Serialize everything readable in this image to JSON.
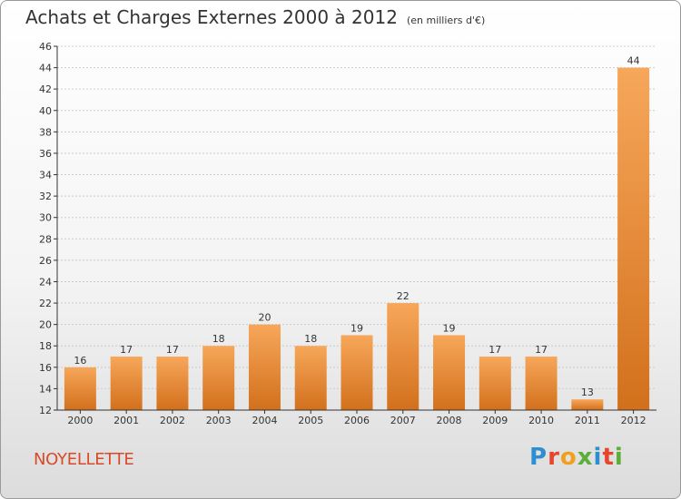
{
  "header": {
    "title": "Achats et Charges Externes 2000 à 2012",
    "subtitle": "(en milliers d'€)"
  },
  "footer": {
    "commune": "NOYELLETTE",
    "logo_text": "Proxiti",
    "logo_colors": [
      "#2d8fd0",
      "#e7462c",
      "#f0a01c",
      "#5cae3a",
      "#2d8fd0",
      "#e7462c",
      "#5cae3a"
    ]
  },
  "colors": {
    "bar_light": "#f7a75a",
    "bar_dark": "#d2701c",
    "axis": "#333333",
    "grid": "#cccccc"
  },
  "chart_data": {
    "type": "bar",
    "categories": [
      "2000",
      "2001",
      "2002",
      "2003",
      "2004",
      "2005",
      "2006",
      "2007",
      "2008",
      "2009",
      "2010",
      "2011",
      "2012"
    ],
    "values": [
      16,
      17,
      17,
      18,
      20,
      18,
      19,
      22,
      19,
      17,
      17,
      13,
      44
    ],
    "title": "Achats et Charges Externes 2000 à 2012",
    "subtitle": "(en milliers d'€)",
    "ylim": [
      12,
      46
    ],
    "yticks": [
      12,
      14,
      16,
      18,
      20,
      22,
      24,
      26,
      28,
      30,
      32,
      34,
      36,
      38,
      40,
      42,
      44,
      46
    ],
    "grid": true,
    "data_labels": true
  }
}
